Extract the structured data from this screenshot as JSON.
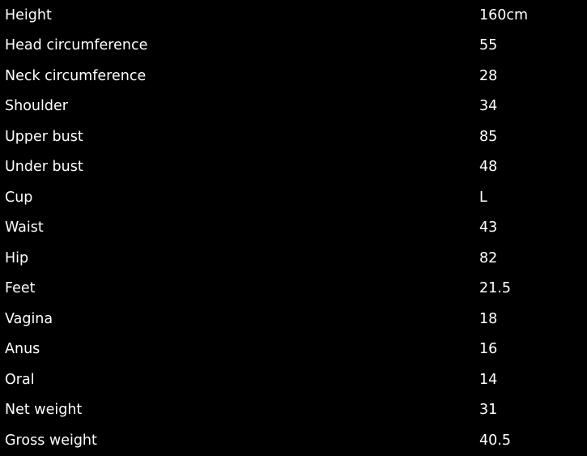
{
  "specs": [
    {
      "label": "Height",
      "value": "160cm"
    },
    {
      "label": "Head circumference",
      "value": "55"
    },
    {
      "label": "Neck circumference",
      "value": "28"
    },
    {
      "label": "Shoulder",
      "value": "34"
    },
    {
      "label": "Upper bust",
      "value": "85"
    },
    {
      "label": "Under bust",
      "value": "48"
    },
    {
      "label": "Cup",
      "value": "L"
    },
    {
      "label": "Waist",
      "value": "43"
    },
    {
      "label": "Hip",
      "value": "82"
    },
    {
      "label": "Feet",
      "value": "21.5"
    },
    {
      "label": "Vagina",
      "value": "18"
    },
    {
      "label": "Anus",
      "value": "16"
    },
    {
      "label": "Oral",
      "value": "14"
    },
    {
      "label": "Net weight",
      "value": "31"
    },
    {
      "label": "Gross weight",
      "value": "40.5"
    }
  ]
}
